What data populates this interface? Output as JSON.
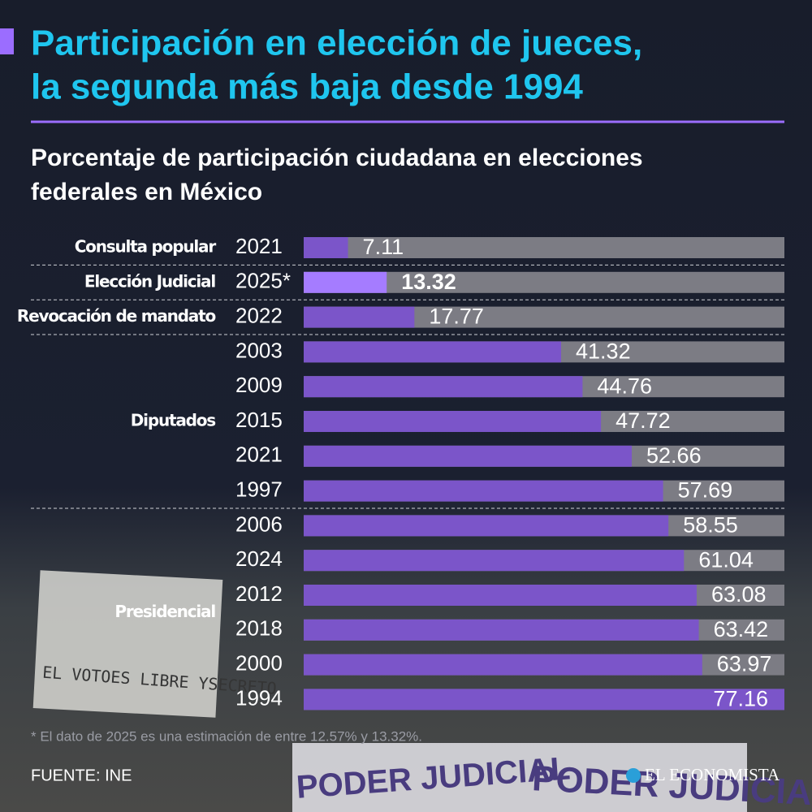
{
  "title": [
    "Participación en elección de jueces,",
    "la segunda más baja desde 1994"
  ],
  "subtitle": [
    "Porcentaje de participación ciudadana en elecciones",
    "federales en México"
  ],
  "chart_data": {
    "type": "bar",
    "orientation": "horizontal",
    "xlim": [
      0,
      77.16
    ],
    "color": "#7b55c9",
    "track_color": "#7c7c84",
    "groups": [
      {
        "name": "Consulta popular",
        "categories": [
          "2021"
        ],
        "values": [
          7.11
        ]
      },
      {
        "name": "Elección Judicial",
        "categories": [
          "2025*"
        ],
        "values": [
          13.32
        ],
        "color": "#a57cff",
        "bold": true
      },
      {
        "name": "Revocación de mandato",
        "categories": [
          "2022"
        ],
        "values": [
          17.77
        ]
      },
      {
        "name": "Diputados",
        "categories": [
          "2003",
          "2009",
          "2015",
          "2021",
          "1997"
        ],
        "values": [
          41.32,
          44.76,
          47.72,
          52.66,
          57.69
        ]
      },
      {
        "name": "Presidencial",
        "categories": [
          "2006",
          "2024",
          "2012",
          "2018",
          "2000",
          "1994"
        ],
        "values": [
          58.55,
          61.04,
          63.08,
          63.42,
          63.97,
          77.16
        ]
      }
    ]
  },
  "footnote": "* El dato de 2025 es una estimación de entre 12.57% y 13.32%.",
  "source": "FUENTE: INE",
  "logo": "EL ECONOMISTA",
  "photo_texts": [
    "EL VOTOES LIBRE YSECRETO",
    "PODER JUDICIAL",
    "PODER JUDICIAL"
  ]
}
